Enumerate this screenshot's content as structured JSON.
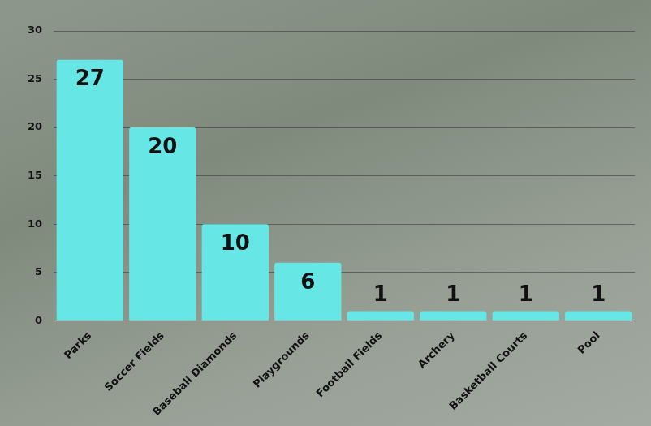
{
  "chart_data": {
    "type": "bar",
    "categories": [
      "Parks",
      "Soccer Fields",
      "Baseball Diamonds",
      "Playgrounds",
      "Football Fields",
      "Archery",
      "Basketball Courts",
      "Pool"
    ],
    "values": [
      27,
      20,
      10,
      6,
      1,
      1,
      1,
      1
    ],
    "color": "#67e6e6",
    "ylim": [
      0,
      30
    ],
    "yticks": [
      0,
      5,
      10,
      15,
      20,
      25,
      30
    ],
    "grid": true,
    "data_labels": true
  }
}
